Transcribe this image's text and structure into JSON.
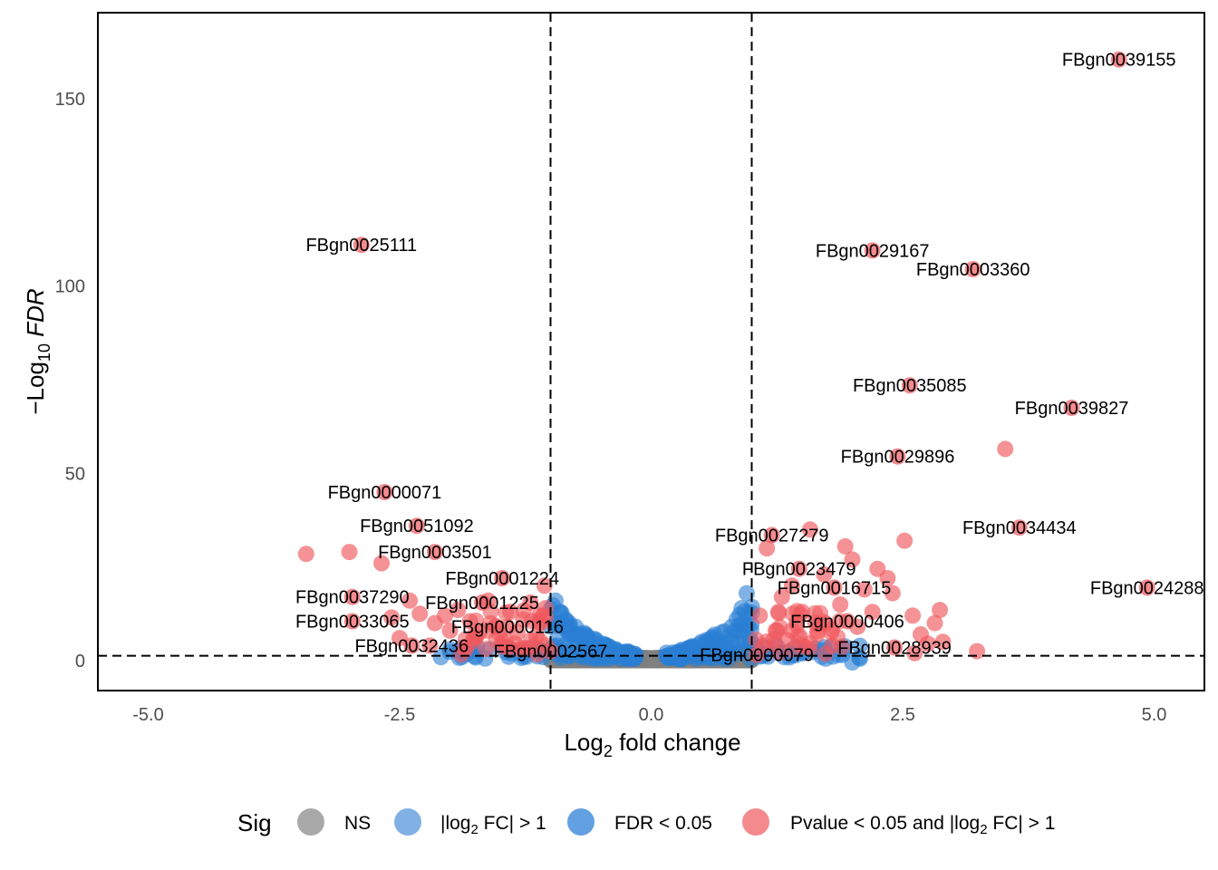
{
  "chart_data": {
    "type": "scatter",
    "xlabel": "Log2 fold change",
    "ylabel": "−Log10 FDR",
    "xlim": [
      -5.5,
      5.5
    ],
    "ylim": [
      -8,
      173
    ],
    "xticks": [
      -5,
      -2.5,
      0,
      2.5,
      5
    ],
    "xtick_labels": [
      "-5.0",
      "-2.5",
      "0.0",
      "2.5",
      "5.0"
    ],
    "yticks": [
      0,
      50,
      100,
      150
    ],
    "ytick_labels": [
      "0",
      "50",
      "100",
      "150"
    ],
    "vlines": [
      -1,
      1
    ],
    "hline": 1.3,
    "grid": false,
    "legend_position": "bottom",
    "legend": {
      "title": "Sig",
      "entries": [
        {
          "key": "ns",
          "label": "NS",
          "color": "#a9a9a9"
        },
        {
          "key": "fc",
          "label": "|log2 FC| > 1",
          "color": "#4a90d9"
        },
        {
          "key": "fdr",
          "label": "FDR < 0.05",
          "color": "#1f77d4"
        },
        {
          "key": "both",
          "label": "Pvalue < 0.05 and |log2 FC| > 1",
          "color": "#f0585e"
        }
      ]
    },
    "colors": {
      "ns": "#808080",
      "fdr": "#2a7fd4",
      "both": "#f0585e"
    },
    "labeled_points": [
      {
        "gene": "FBgn0039155",
        "x": 4.65,
        "y": 160.5,
        "label": "FBgn0039155"
      },
      {
        "gene": "FBgn0025111",
        "x": -2.88,
        "y": 111,
        "label": "FBgn0025111"
      },
      {
        "gene": "FBgn0029167",
        "x": 2.2,
        "y": 109.5,
        "label": "FBgn0029167"
      },
      {
        "gene": "FBgn0003360",
        "x": 3.2,
        "y": 104.5,
        "label": "FBgn0003360"
      },
      {
        "gene": "FBgn0035085",
        "x": 2.57,
        "y": 73.5,
        "label": "FBgn0035085"
      },
      {
        "gene": "FBgn0039827",
        "x": 4.18,
        "y": 67.5,
        "label": "FBgn0039827"
      },
      {
        "gene": "FBgn0029896",
        "x": 2.45,
        "y": 54.5,
        "label": "FBgn0029896"
      },
      {
        "gene": "FBgn0000071",
        "x": -2.65,
        "y": 45,
        "label": "FBgn0000071"
      },
      {
        "gene": "FBgn0051092",
        "x": -2.33,
        "y": 36,
        "label": "FBgn0051092"
      },
      {
        "gene": "FBgn0034434",
        "x": 3.66,
        "y": 35.5,
        "label": "FBgn0034434"
      },
      {
        "gene": "FBgn0027279",
        "x": 1.2,
        "y": 33.5,
        "label": "FBgn0027279"
      },
      {
        "gene": "FBgn0003501",
        "x": -2.15,
        "y": 29,
        "label": "FBgn0003501"
      },
      {
        "gene": "FBgn0023479",
        "x": 1.47,
        "y": 24.5,
        "label": "FBgn0023479"
      },
      {
        "gene": "FBgn0001224",
        "x": -1.48,
        "y": 22,
        "label": "FBgn0001224"
      },
      {
        "gene": "FBgn0024288",
        "x": 4.93,
        "y": 19.5,
        "label": "FBgn0024288"
      },
      {
        "gene": "FBgn0016715",
        "x": 1.82,
        "y": 19.5,
        "label": "FBgn0016715"
      },
      {
        "gene": "FBgn0037290",
        "x": -2.97,
        "y": 17,
        "label": "FBgn0037290"
      },
      {
        "gene": "FBgn0001225",
        "x": -1.68,
        "y": 15.5,
        "label": "FBgn0001225"
      },
      {
        "gene": "FBgn0033065",
        "x": -2.97,
        "y": 10.5,
        "label": "FBgn0033065"
      },
      {
        "gene": "FBgn0000406",
        "x": 1.95,
        "y": 10.5,
        "label": "FBgn0000406"
      },
      {
        "gene": "FBgn0000116",
        "x": -1.43,
        "y": 9,
        "label": "FBgn0000116"
      },
      {
        "gene": "FBgn0032436",
        "x": -2.38,
        "y": 4,
        "label": "FBgn0032436"
      },
      {
        "gene": "FBgn0028939",
        "x": 2.42,
        "y": 3.5,
        "label": "FBgn0028939"
      },
      {
        "gene": "FBgn0002567",
        "x": -1.0,
        "y": 2.5,
        "label": "FBgn0002567"
      },
      {
        "gene": "FBgn0000079",
        "x": 1.05,
        "y": 1.5,
        "label": "FBgn0000079"
      }
    ],
    "unlabeled_sig_points": [
      {
        "x": -3.43,
        "y": 28.5
      },
      {
        "x": -3.0,
        "y": 29
      },
      {
        "x": -2.68,
        "y": 26
      },
      {
        "x": -2.4,
        "y": 16
      },
      {
        "x": -2.3,
        "y": 12.5
      },
      {
        "x": -2.58,
        "y": 11.5
      },
      {
        "x": -2.15,
        "y": 10
      },
      {
        "x": -2.0,
        "y": 8
      },
      {
        "x": -2.05,
        "y": 12
      },
      {
        "x": -1.92,
        "y": 13.5
      },
      {
        "x": -1.8,
        "y": 10.5
      },
      {
        "x": -1.75,
        "y": 6
      },
      {
        "x": -1.62,
        "y": 16
      },
      {
        "x": -1.55,
        "y": 9
      },
      {
        "x": -1.48,
        "y": 5
      },
      {
        "x": -1.4,
        "y": 13
      },
      {
        "x": -1.33,
        "y": 7.5
      },
      {
        "x": -1.27,
        "y": 11
      },
      {
        "x": -1.2,
        "y": 15.5
      },
      {
        "x": -1.14,
        "y": 6.5
      },
      {
        "x": -1.1,
        "y": 10
      },
      {
        "x": -1.05,
        "y": 14
      },
      {
        "x": -1.06,
        "y": 20
      },
      {
        "x": -2.2,
        "y": 4
      },
      {
        "x": -1.85,
        "y": 3.5
      },
      {
        "x": -1.3,
        "y": 3
      },
      {
        "x": -2.5,
        "y": 6
      },
      {
        "x": 1.08,
        "y": 12
      },
      {
        "x": 1.15,
        "y": 30
      },
      {
        "x": 1.25,
        "y": 8
      },
      {
        "x": 1.3,
        "y": 17
      },
      {
        "x": 1.4,
        "y": 20
      },
      {
        "x": 1.5,
        "y": 13
      },
      {
        "x": 1.58,
        "y": 35
      },
      {
        "x": 1.65,
        "y": 7
      },
      {
        "x": 1.72,
        "y": 23
      },
      {
        "x": 1.88,
        "y": 15
      },
      {
        "x": 1.93,
        "y": 30.5
      },
      {
        "x": 2.0,
        "y": 27
      },
      {
        "x": 2.05,
        "y": 9
      },
      {
        "x": 2.12,
        "y": 19
      },
      {
        "x": 2.2,
        "y": 13
      },
      {
        "x": 2.25,
        "y": 24.5
      },
      {
        "x": 2.35,
        "y": 22
      },
      {
        "x": 2.4,
        "y": 18
      },
      {
        "x": 2.52,
        "y": 32
      },
      {
        "x": 2.6,
        "y": 12
      },
      {
        "x": 2.68,
        "y": 7
      },
      {
        "x": 2.75,
        "y": 4.5
      },
      {
        "x": 2.82,
        "y": 10
      },
      {
        "x": 2.87,
        "y": 13.5
      },
      {
        "x": 2.9,
        "y": 5
      },
      {
        "x": 3.24,
        "y": 2.5
      },
      {
        "x": 3.52,
        "y": 56.5
      },
      {
        "x": 2.62,
        "y": 2
      },
      {
        "x": 1.12,
        "y": 4
      },
      {
        "x": 1.35,
        "y": 5.5
      },
      {
        "x": 1.8,
        "y": 4
      }
    ],
    "fdr_points": [
      {
        "x": 0.95,
        "y": 18
      },
      {
        "x": 0.9,
        "y": 14
      },
      {
        "x": 0.85,
        "y": 11
      },
      {
        "x": 0.8,
        "y": 9
      },
      {
        "x": 0.7,
        "y": 7.5
      },
      {
        "x": 0.6,
        "y": 6
      },
      {
        "x": 0.5,
        "y": 5
      },
      {
        "x": 0.4,
        "y": 3.5
      },
      {
        "x": 0.3,
        "y": 2.5
      },
      {
        "x": -0.95,
        "y": 16
      },
      {
        "x": -0.9,
        "y": 13
      },
      {
        "x": -0.85,
        "y": 11
      },
      {
        "x": -0.75,
        "y": 9
      },
      {
        "x": -0.65,
        "y": 7
      },
      {
        "x": -0.55,
        "y": 5.5
      },
      {
        "x": -0.45,
        "y": 4
      },
      {
        "x": -0.35,
        "y": 3
      },
      {
        "x": -1.6,
        "y": 3
      },
      {
        "x": -1.9,
        "y": 2.5
      },
      {
        "x": 1.9,
        "y": 1.5
      },
      {
        "x": 2.0,
        "y": -0.5
      },
      {
        "x": 1.5,
        "y": 2
      }
    ]
  }
}
